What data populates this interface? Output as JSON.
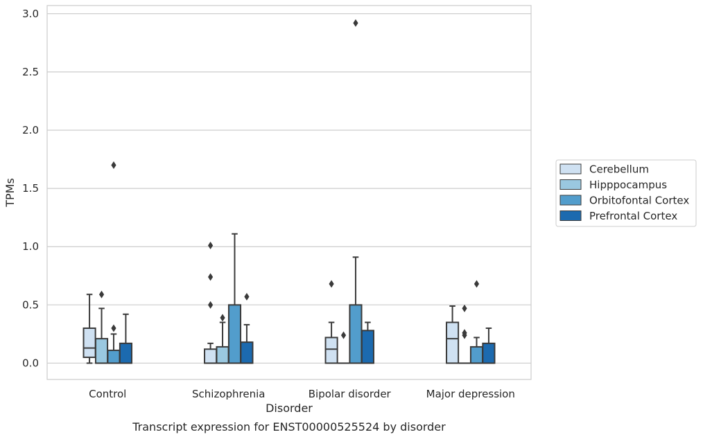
{
  "chart_data": {
    "type": "box",
    "caption": "Transcript expression for ENST00000525524 by disorder",
    "xlabel": "Disorder",
    "ylabel": "TPMs",
    "ylim": [
      -0.14,
      3.07
    ],
    "yticks": [
      "0.0",
      "0.5",
      "1.0",
      "1.5",
      "2.0",
      "2.5",
      "3.0"
    ],
    "grid": "horizontal",
    "legend_position": "right",
    "categories": [
      "Control",
      "Schizophrenia",
      "Bipolar disorder",
      "Major depression"
    ],
    "series": [
      {
        "name": "Cerebellum",
        "color": "#cfe1f2",
        "boxes": [
          {
            "q1": 0.05,
            "median": 0.13,
            "q3": 0.3,
            "whislo": 0.0,
            "whishi": 0.59,
            "fliers": []
          },
          {
            "q1": 0.0,
            "median": 0.0,
            "q3": 0.12,
            "whislo": 0.0,
            "whishi": 0.17,
            "fliers": [
              0.5,
              0.74,
              1.01
            ]
          },
          {
            "q1": 0.0,
            "median": 0.12,
            "q3": 0.22,
            "whislo": 0.0,
            "whishi": 0.35,
            "fliers": [
              0.68
            ]
          },
          {
            "q1": 0.0,
            "median": 0.21,
            "q3": 0.35,
            "whislo": 0.0,
            "whishi": 0.49,
            "fliers": []
          }
        ]
      },
      {
        "name": "Hipppocampus",
        "color": "#9ac8e0",
        "boxes": [
          {
            "q1": 0.0,
            "median": 0.0,
            "q3": 0.21,
            "whislo": 0.0,
            "whishi": 0.47,
            "fliers": [
              0.59
            ]
          },
          {
            "q1": 0.0,
            "median": 0.0,
            "q3": 0.14,
            "whislo": 0.0,
            "whishi": 0.35,
            "fliers": [
              0.39
            ]
          },
          {
            "q1": 0.0,
            "median": 0.0,
            "q3": 0.0,
            "whislo": 0.0,
            "whishi": 0.0,
            "fliers": [
              0.24
            ]
          },
          {
            "q1": 0.0,
            "median": 0.0,
            "q3": 0.0,
            "whislo": 0.0,
            "whishi": 0.0,
            "fliers": [
              0.24,
              0.26,
              0.47
            ]
          }
        ]
      },
      {
        "name": "Orbitofontal Cortex",
        "color": "#529dcc",
        "boxes": [
          {
            "q1": 0.0,
            "median": 0.0,
            "q3": 0.11,
            "whislo": 0.0,
            "whishi": 0.25,
            "fliers": [
              0.3,
              1.7
            ]
          },
          {
            "q1": 0.0,
            "median": 0.0,
            "q3": 0.5,
            "whislo": 0.0,
            "whishi": 1.11,
            "fliers": []
          },
          {
            "q1": 0.0,
            "median": 0.0,
            "q3": 0.5,
            "whislo": 0.0,
            "whishi": 0.91,
            "fliers": [
              2.92
            ]
          },
          {
            "q1": 0.0,
            "median": 0.0,
            "q3": 0.14,
            "whislo": 0.0,
            "whishi": 0.22,
            "fliers": [
              0.68
            ]
          }
        ]
      },
      {
        "name": "Prefrontal Cortex",
        "color": "#1c6aaf",
        "boxes": [
          {
            "q1": 0.0,
            "median": 0.0,
            "q3": 0.17,
            "whislo": 0.0,
            "whishi": 0.42,
            "fliers": []
          },
          {
            "q1": 0.0,
            "median": 0.0,
            "q3": 0.18,
            "whislo": 0.0,
            "whishi": 0.33,
            "fliers": [
              0.57
            ]
          },
          {
            "q1": 0.0,
            "median": 0.0,
            "q3": 0.28,
            "whislo": 0.0,
            "whishi": 0.35,
            "fliers": []
          },
          {
            "q1": 0.0,
            "median": 0.0,
            "q3": 0.17,
            "whislo": 0.0,
            "whishi": 0.3,
            "fliers": []
          }
        ]
      }
    ]
  }
}
